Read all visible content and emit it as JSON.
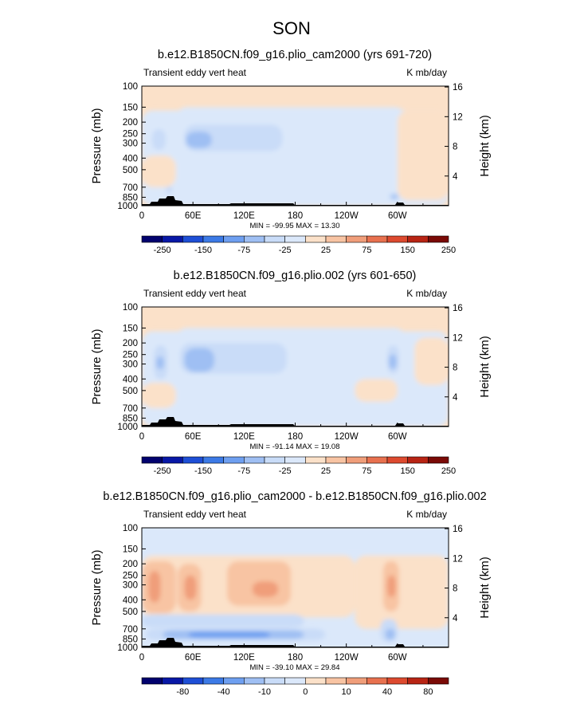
{
  "season": "SON",
  "palette": {
    "full": [
      "#02026e",
      "#0818a6",
      "#1e4fd6",
      "#3c7ae6",
      "#6e9ff0",
      "#9fbff3",
      "#c9dcf8",
      "#dbe8fa",
      "#fbe1c9",
      "#f8c4a3",
      "#f09e7a",
      "#e8714f",
      "#dd4a2f",
      "#b82414",
      "#7a0a06"
    ],
    "bg_label": "#fbe1c9"
  },
  "chart_data": [
    {
      "type": "heatmap",
      "title": "b.e12.B1850CN.f09_g16.plio_cam2000 (yrs 691-720)",
      "left_label": "Transient eddy vert heat",
      "right_label": "K mb/day",
      "ylabel": "Pressure (mb)",
      "ylabel_right": "Height (km)",
      "y_ticks": [
        "100",
        "150",
        "200",
        "250",
        "300",
        "400",
        "500",
        "700",
        "850",
        "1000"
      ],
      "y_values": [
        100,
        150,
        200,
        250,
        300,
        400,
        500,
        700,
        850,
        1000
      ],
      "y_right_ticks": [
        "16",
        "12",
        "8",
        "4"
      ],
      "y_right_values": [
        16,
        12,
        8,
        4
      ],
      "x_ticks": [
        "0",
        "60E",
        "120E",
        "180",
        "120W",
        "60W"
      ],
      "x_values": [
        0,
        60,
        120,
        180,
        240,
        300
      ],
      "xlim": [
        0,
        360
      ],
      "ylim": [
        1000,
        100
      ],
      "minmax": "MIN = -99.95   MAX =  13.30",
      "colorbar_ticks": [
        "-250",
        "-150",
        "-75",
        "-25",
        "25",
        "75",
        "150",
        "250"
      ],
      "background_level": 8,
      "regions": [
        {
          "lon": [
            0,
            360
          ],
          "p": [
            160,
            1000
          ],
          "level": 7
        },
        {
          "lon": [
            40,
            310
          ],
          "p": [
            150,
            560
          ],
          "level": 7
        },
        {
          "lon": [
            12,
            28
          ],
          "p": [
            230,
            340
          ],
          "level": 6
        },
        {
          "lon": [
            50,
            165
          ],
          "p": [
            210,
            350
          ],
          "level": 6
        },
        {
          "lon": [
            52,
            82
          ],
          "p": [
            240,
            330
          ],
          "level": 5
        },
        {
          "lon": [
            290,
            302
          ],
          "p": [
            780,
            900
          ],
          "level": 6
        },
        {
          "lon": [
            293,
            300
          ],
          "p": [
            810,
            880
          ],
          "level": 5
        },
        {
          "lon": [
            28,
            36
          ],
          "p": [
            690,
            790
          ],
          "level": 6
        },
        {
          "lon": [
            0,
            40
          ],
          "p": [
            380,
            700
          ],
          "level": 8
        },
        {
          "lon": [
            300,
            360
          ],
          "p": [
            160,
            900
          ],
          "level": 8
        }
      ]
    },
    {
      "type": "heatmap",
      "title": "b.e12.B1850CN.f09_g16.plio.002 (yrs 601-650)",
      "left_label": "Transient eddy vert heat",
      "right_label": "K mb/day",
      "ylabel": "Pressure (mb)",
      "ylabel_right": "Height (km)",
      "y_ticks": [
        "100",
        "150",
        "200",
        "250",
        "300",
        "400",
        "500",
        "700",
        "850",
        "1000"
      ],
      "y_values": [
        100,
        150,
        200,
        250,
        300,
        400,
        500,
        700,
        850,
        1000
      ],
      "y_right_ticks": [
        "16",
        "12",
        "8",
        "4"
      ],
      "y_right_values": [
        16,
        12,
        8,
        4
      ],
      "x_ticks": [
        "0",
        "60E",
        "120E",
        "180",
        "120W",
        "60W"
      ],
      "x_values": [
        0,
        60,
        120,
        180,
        240,
        300
      ],
      "xlim": [
        0,
        360
      ],
      "ylim": [
        1000,
        100
      ],
      "minmax": "MIN = -91.14   MAX =  19.08",
      "colorbar_ticks": [
        "-250",
        "-150",
        "-75",
        "-25",
        "25",
        "75",
        "150",
        "250"
      ],
      "background_level": 8,
      "regions": [
        {
          "lon": [
            0,
            360
          ],
          "p": [
            160,
            1000
          ],
          "level": 7
        },
        {
          "lon": [
            40,
            310
          ],
          "p": [
            150,
            560
          ],
          "level": 7
        },
        {
          "lon": [
            14,
            30
          ],
          "p": [
            210,
            400
          ],
          "level": 6
        },
        {
          "lon": [
            17,
            26
          ],
          "p": [
            260,
            330
          ],
          "level": 5
        },
        {
          "lon": [
            45,
            170
          ],
          "p": [
            200,
            360
          ],
          "level": 6
        },
        {
          "lon": [
            50,
            85
          ],
          "p": [
            220,
            350
          ],
          "level": 5
        },
        {
          "lon": [
            288,
            302
          ],
          "p": [
            210,
            360
          ],
          "level": 6
        },
        {
          "lon": [
            290,
            299
          ],
          "p": [
            250,
            330
          ],
          "level": 5
        },
        {
          "lon": [
            0,
            40
          ],
          "p": [
            430,
            700
          ],
          "level": 8
        },
        {
          "lon": [
            250,
            300
          ],
          "p": [
            400,
            620
          ],
          "level": 8
        },
        {
          "lon": [
            320,
            360
          ],
          "p": [
            180,
            450
          ],
          "level": 8
        }
      ]
    },
    {
      "type": "heatmap",
      "title": "b.e12.B1850CN.f09_g16.plio_cam2000 - b.e12.B1850CN.f09_g16.plio.002",
      "left_label": "Transient eddy vert heat",
      "right_label": "K mb/day",
      "ylabel": "Pressure (mb)",
      "ylabel_right": "Height (km)",
      "y_ticks": [
        "100",
        "150",
        "200",
        "250",
        "300",
        "400",
        "500",
        "700",
        "850",
        "1000"
      ],
      "y_values": [
        100,
        150,
        200,
        250,
        300,
        400,
        500,
        700,
        850,
        1000
      ],
      "y_right_ticks": [
        "16",
        "12",
        "8",
        "4"
      ],
      "y_right_values": [
        16,
        12,
        8,
        4
      ],
      "x_ticks": [
        "0",
        "60E",
        "120E",
        "180",
        "120W",
        "60W"
      ],
      "x_values": [
        0,
        60,
        120,
        180,
        240,
        300
      ],
      "xlim": [
        0,
        360
      ],
      "ylim": [
        1000,
        100
      ],
      "minmax": "MIN = -39.10   MAX =  29.84",
      "colorbar_ticks": [
        "-80",
        "-40",
        "-10",
        "0",
        "10",
        "40",
        "80"
      ],
      "background_level": 7,
      "regions": [
        {
          "lon": [
            0,
            360
          ],
          "p": [
            100,
            170
          ],
          "level": 7
        },
        {
          "lon": [
            0,
            250
          ],
          "p": [
            170,
            560
          ],
          "level": 8
        },
        {
          "lon": [
            250,
            360
          ],
          "p": [
            170,
            700
          ],
          "level": 8
        },
        {
          "lon": [
            0,
            40
          ],
          "p": [
            190,
            520
          ],
          "level": 9
        },
        {
          "lon": [
            8,
            22
          ],
          "p": [
            230,
            420
          ],
          "level": 10
        },
        {
          "lon": [
            42,
            70
          ],
          "p": [
            200,
            500
          ],
          "level": 9
        },
        {
          "lon": [
            50,
            64
          ],
          "p": [
            250,
            400
          ],
          "level": 10
        },
        {
          "lon": [
            100,
            175
          ],
          "p": [
            190,
            450
          ],
          "level": 9
        },
        {
          "lon": [
            130,
            160
          ],
          "p": [
            280,
            380
          ],
          "level": 10
        },
        {
          "lon": [
            283,
            302
          ],
          "p": [
            190,
            500
          ],
          "level": 9
        },
        {
          "lon": [
            288,
            298
          ],
          "p": [
            250,
            380
          ],
          "level": 10
        },
        {
          "lon": [
            0,
            190
          ],
          "p": [
            530,
            680
          ],
          "level": 6
        },
        {
          "lon": [
            5,
            215
          ],
          "p": [
            700,
            870
          ],
          "level": 6
        },
        {
          "lon": [
            25,
            190
          ],
          "p": [
            720,
            850
          ],
          "level": 5
        },
        {
          "lon": [
            55,
            150
          ],
          "p": [
            740,
            830
          ],
          "level": 4
        },
        {
          "lon": [
            280,
            300
          ],
          "p": [
            580,
            900
          ],
          "level": 6
        },
        {
          "lon": [
            286,
            297
          ],
          "p": [
            700,
            860
          ],
          "level": 5
        }
      ]
    }
  ]
}
